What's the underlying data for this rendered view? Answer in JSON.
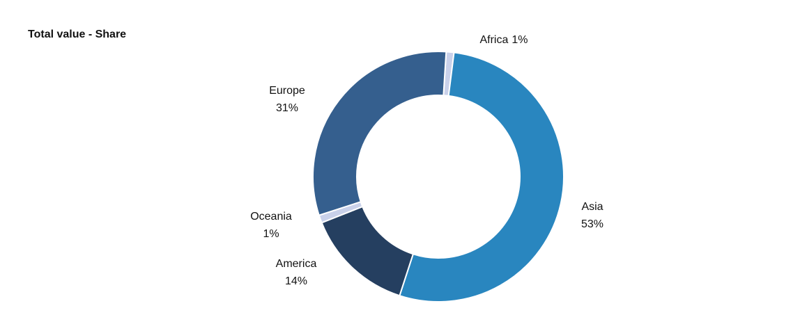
{
  "chart_data": {
    "type": "donut",
    "title": "Total value - Share",
    "categories": [
      "Africa",
      "Asia",
      "America",
      "Oceania",
      "Europe"
    ],
    "values": [
      1,
      53,
      14,
      1,
      31
    ],
    "value_labels": [
      "1%",
      "53%",
      "14%",
      "1%",
      "31%"
    ],
    "colors": [
      "#c9d1ea",
      "#2986bf",
      "#253f60",
      "#c9d1ea",
      "#355f8e"
    ]
  }
}
